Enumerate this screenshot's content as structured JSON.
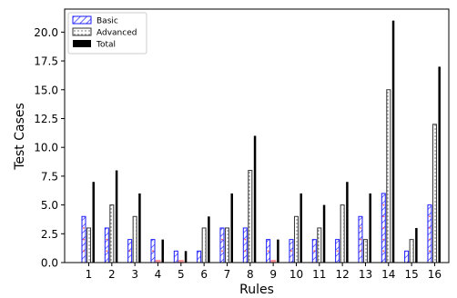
{
  "chart_data": {
    "type": "bar",
    "categories": [
      "1",
      "2",
      "3",
      "4",
      "5",
      "6",
      "7",
      "8",
      "9",
      "10",
      "11",
      "12",
      "13",
      "14",
      "15",
      "16"
    ],
    "series": [
      {
        "name": "Basic",
        "values": [
          4,
          3,
          2,
          2,
          1,
          1,
          3,
          3,
          2,
          2,
          2,
          2,
          4,
          6,
          1,
          5
        ]
      },
      {
        "name": "Advanced",
        "values": [
          3,
          5,
          4,
          0,
          0,
          3,
          3,
          8,
          0,
          4,
          3,
          5,
          2,
          15,
          2,
          12
        ]
      },
      {
        "name": "Total",
        "values": [
          7,
          8,
          6,
          2,
          1,
          4,
          6,
          11,
          2,
          6,
          5,
          7,
          6,
          21,
          3,
          17
        ]
      }
    ],
    "xlabel": "Rules",
    "ylabel": "Test Cases",
    "ylim": [
      0,
      22
    ],
    "yticks": [
      "0.0",
      "2.5",
      "5.0",
      "7.5",
      "10.0",
      "12.5",
      "15.0",
      "17.5",
      "20.0"
    ],
    "legend": "top-left",
    "grid": false,
    "colors": {
      "basic_edge": "#1a1aff",
      "basic_point": "#ff5555",
      "advanced_edge": "#333333",
      "total": "#000000"
    }
  }
}
